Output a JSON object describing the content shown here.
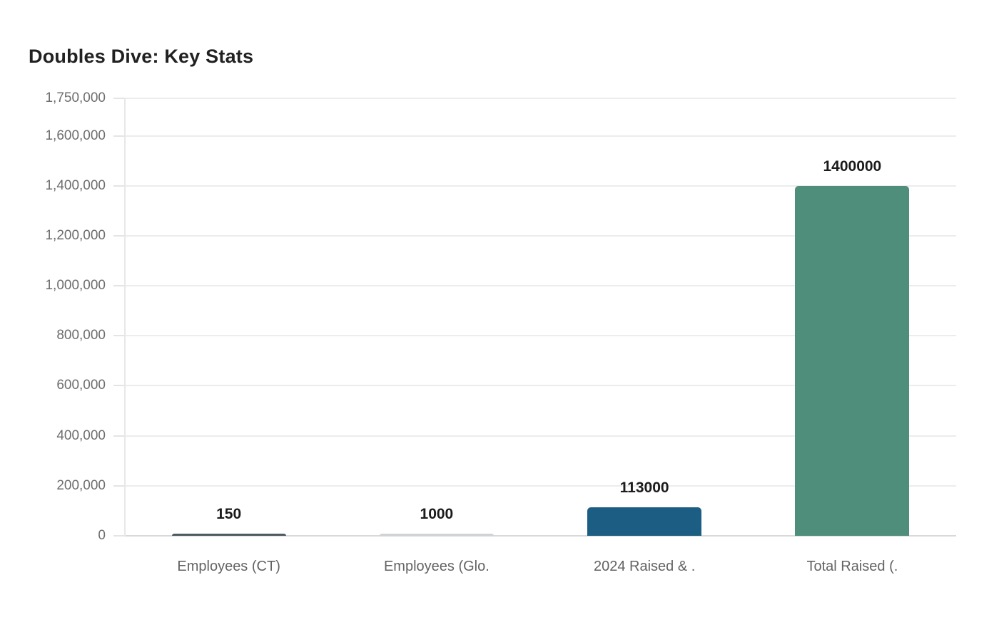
{
  "chart": {
    "title": "Doubles Dive: Key Stats"
  },
  "chart_data": {
    "type": "bar",
    "title": "Doubles Dive: Key Stats",
    "categories": [
      "Employees (CT)",
      "Employees (Glo.",
      "2024 Raised & .",
      "Total Raised (."
    ],
    "values": [
      150,
      1000,
      113000,
      1400000
    ],
    "value_labels": [
      "150",
      "1000",
      "113000",
      "1400000"
    ],
    "bar_colors": [
      "#4e5a62",
      "#cfd4d7",
      "#1c5e83",
      "#4e8e7a"
    ],
    "xlabel": "",
    "ylabel": "",
    "ylim": [
      0,
      1750000
    ],
    "y_ticks": [
      {
        "label": "1,750,000",
        "value": 1750000
      },
      {
        "label": "1,600,000",
        "value": 1600000
      },
      {
        "label": "1,400,000",
        "value": 1400000
      },
      {
        "label": "1,200,000",
        "value": 1200000
      },
      {
        "label": "1,000,000",
        "value": 1000000
      },
      {
        "label": "800,000",
        "value": 800000
      },
      {
        "label": "600,000",
        "value": 600000
      },
      {
        "label": "400,000",
        "value": 400000
      },
      {
        "label": "200,000",
        "value": 200000
      },
      {
        "label": "0",
        "value": 0
      }
    ],
    "grid": true,
    "legend": false,
    "theme": {
      "background": "#ffffff",
      "grid_color": "#ececec",
      "baseline_color": "#d9d9d9",
      "axis_line_color": "#e7e7e7",
      "y_label_color": "#6d6d6d",
      "x_label_color": "#636363",
      "value_label_color": "#1b1b1b",
      "title_color": "#212121"
    }
  }
}
